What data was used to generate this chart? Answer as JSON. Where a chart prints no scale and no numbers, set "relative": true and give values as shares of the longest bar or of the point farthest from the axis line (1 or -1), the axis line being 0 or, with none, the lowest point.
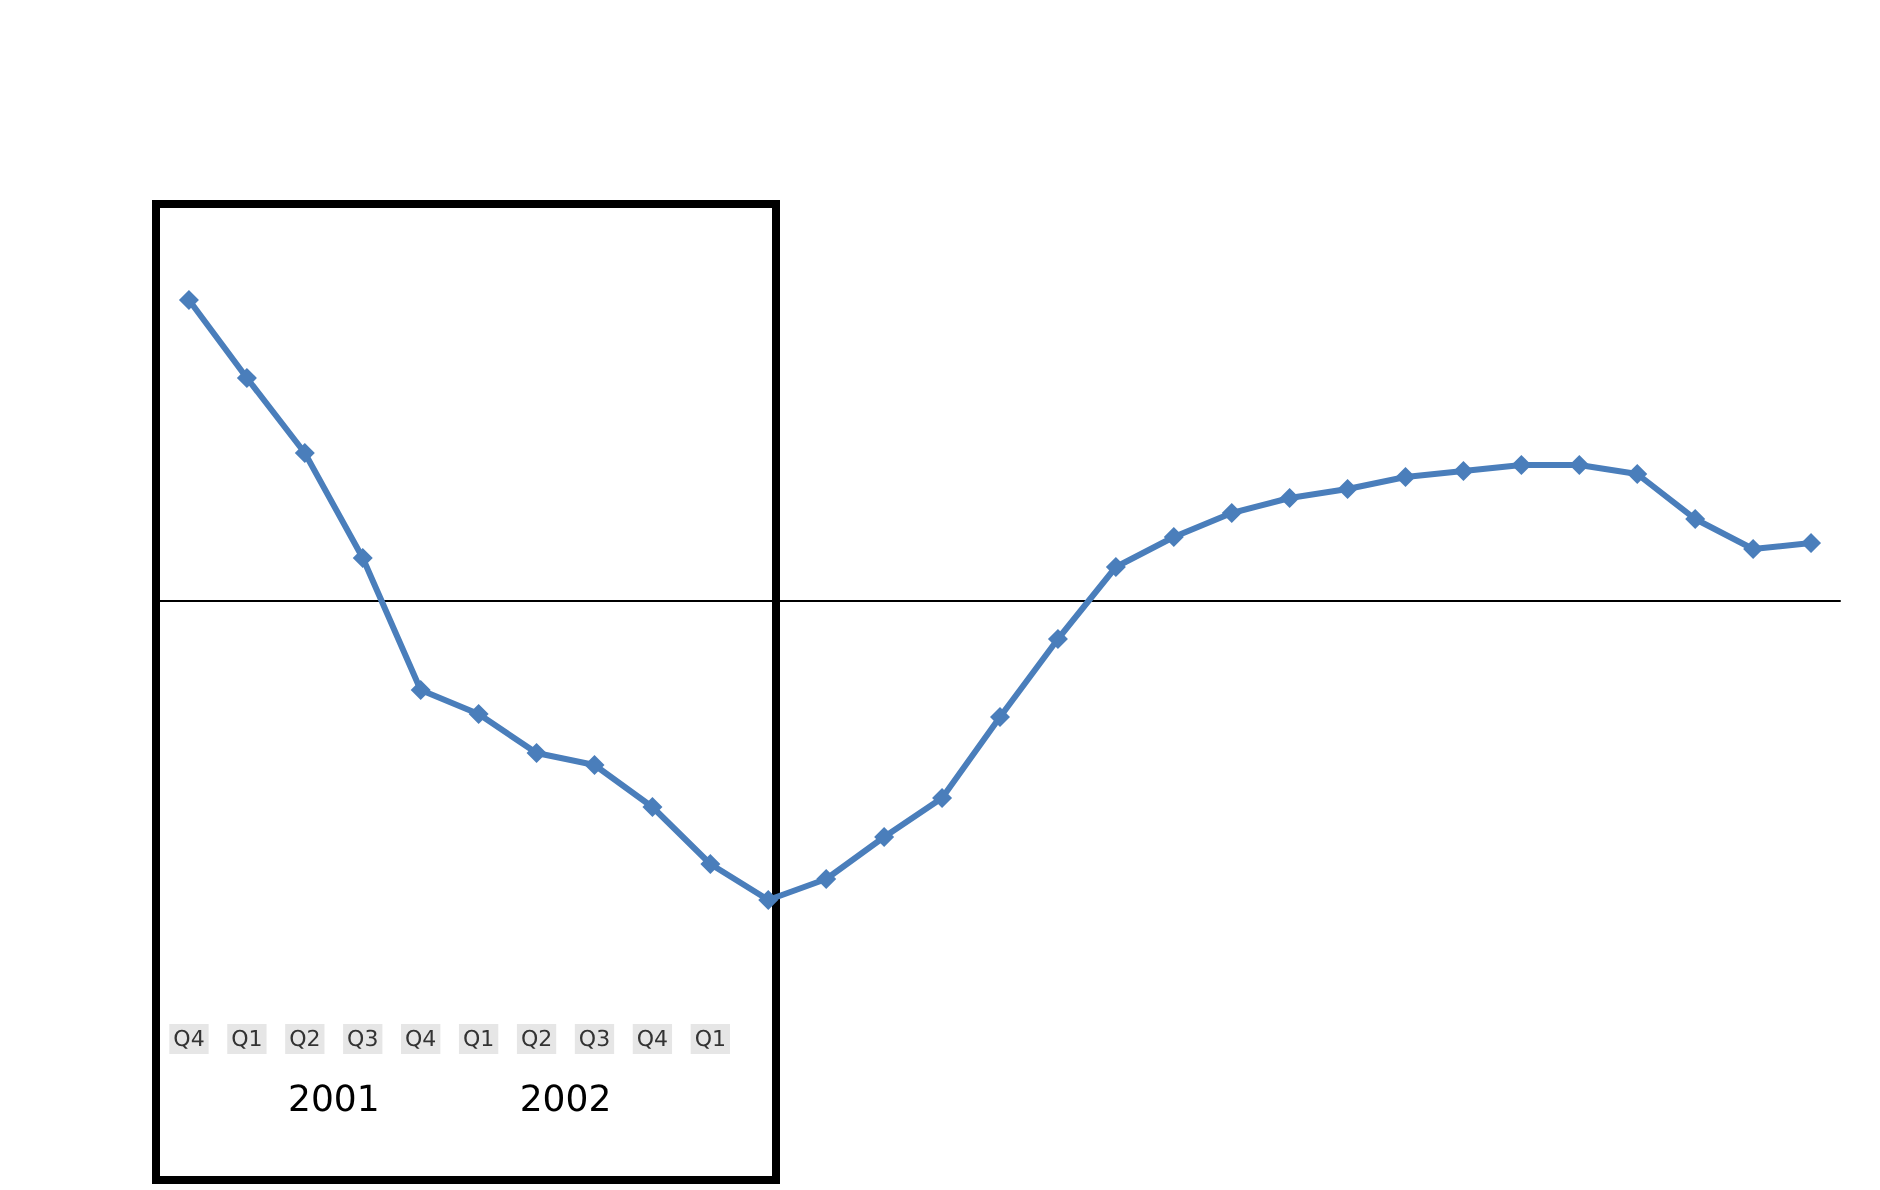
{
  "chart_data": {
    "type": "line",
    "relative": true,
    "categories": [
      "Q4",
      "Q1",
      "Q2",
      "Q3",
      "Q4",
      "Q1",
      "Q2",
      "Q3",
      "Q4",
      "Q1",
      null,
      null,
      null,
      null,
      null,
      null,
      null,
      null,
      null,
      null,
      null,
      null,
      null,
      null,
      null,
      null,
      null,
      null,
      null
    ],
    "series": [
      {
        "color": "#4a7ebb",
        "values": [
          1.0,
          0.74,
          0.49,
          0.14,
          -0.3,
          -0.38,
          -0.51,
          -0.55,
          -0.69,
          -0.88,
          -1.0,
          -0.93,
          -0.79,
          -0.66,
          -0.39,
          -0.13,
          0.11,
          0.21,
          0.29,
          0.34,
          0.37,
          0.41,
          0.43,
          0.45,
          0.45,
          0.42,
          0.27,
          0.17,
          0.19
        ]
      }
    ],
    "annotations": [
      "2001",
      "2002"
    ],
    "marker": "diamond",
    "grid": false
  }
}
